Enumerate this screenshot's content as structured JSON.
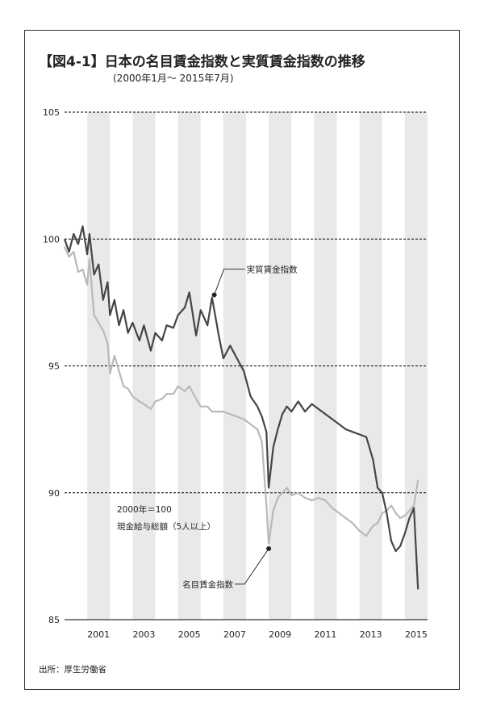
{
  "title": "【図4-1】日本の名目賃金指数と実質賃金指数の推移",
  "subtitle": "(2000年1月～ 2015年7月)",
  "source": "出所：厚生労働省",
  "notes": [
    "2000年＝100",
    "現金給与総額（5人以上）"
  ],
  "colors": {
    "nominal": "#b9b9b9",
    "real": "#454545",
    "band": "#e9e9e9",
    "grid": "#000000"
  },
  "chart_data": {
    "type": "line",
    "title": "【図4-1】日本の名目賃金指数と実質賃金指数の推移",
    "subtitle": "(2000年1月～ 2015年7月)",
    "ylim": [
      85,
      105
    ],
    "yticks": [
      85,
      90,
      95,
      100,
      105
    ],
    "xlim": [
      2000.0,
      2016.0
    ],
    "xticks": [
      2001,
      2003,
      2005,
      2007,
      2009,
      2011,
      2013,
      2015
    ],
    "grid": "dashed horizontal lines at 90, 95, 100 and 105; alternating shaded year bands",
    "series": [
      {
        "name": "実質賃金指数",
        "x": [
          2000.0,
          2000.2,
          2000.4,
          2000.6,
          2000.8,
          2001.0,
          2001.1,
          2001.3,
          2001.5,
          2001.7,
          2001.9,
          2002.0,
          2002.2,
          2002.4,
          2002.6,
          2002.8,
          2003.0,
          2003.3,
          2003.5,
          2003.8,
          2004.0,
          2004.3,
          2004.5,
          2004.8,
          2005.0,
          2005.3,
          2005.5,
          2005.8,
          2006.0,
          2006.3,
          2006.5,
          2006.8,
          2007.0,
          2007.3,
          2007.6,
          2007.9,
          2008.2,
          2008.5,
          2008.7,
          2008.9,
          2009.0,
          2009.2,
          2009.4,
          2009.6,
          2009.8,
          2010.0,
          2010.3,
          2010.6,
          2010.9,
          2011.2,
          2011.5,
          2011.8,
          2012.1,
          2012.4,
          2012.7,
          2013.0,
          2013.3,
          2013.6,
          2013.8,
          2014.0,
          2014.2,
          2014.4,
          2014.6,
          2014.8,
          2015.0,
          2015.2,
          2015.4,
          2015.58
        ],
        "values": [
          100.0,
          99.5,
          100.2,
          99.8,
          100.5,
          99.4,
          100.2,
          98.6,
          99.0,
          97.6,
          98.3,
          97.0,
          97.6,
          96.6,
          97.2,
          96.3,
          96.7,
          96.0,
          96.6,
          95.6,
          96.3,
          96.0,
          96.6,
          96.5,
          97.0,
          97.3,
          97.9,
          96.2,
          97.2,
          96.6,
          97.7,
          96.2,
          95.3,
          95.8,
          95.3,
          94.8,
          93.8,
          93.4,
          93.0,
          92.4,
          90.2,
          91.8,
          92.5,
          93.1,
          93.4,
          93.2,
          93.6,
          93.2,
          93.5,
          93.3,
          93.1,
          92.9,
          92.7,
          92.5,
          92.4,
          92.3,
          92.2,
          91.3,
          90.2,
          90.0,
          89.2,
          88.1,
          87.7,
          87.9,
          88.4,
          89.0,
          89.4,
          86.2
        ]
      },
      {
        "name": "名目賃金指数",
        "x": [
          2000.0,
          2000.2,
          2000.4,
          2000.6,
          2000.8,
          2001.0,
          2001.1,
          2001.3,
          2001.5,
          2001.7,
          2001.9,
          2002.0,
          2002.2,
          2002.4,
          2002.6,
          2002.8,
          2003.0,
          2003.3,
          2003.5,
          2003.8,
          2004.0,
          2004.3,
          2004.5,
          2004.8,
          2005.0,
          2005.3,
          2005.5,
          2005.8,
          2006.0,
          2006.3,
          2006.5,
          2006.8,
          2007.0,
          2007.3,
          2007.6,
          2007.9,
          2008.2,
          2008.5,
          2008.7,
          2008.9,
          2009.0,
          2009.2,
          2009.4,
          2009.6,
          2009.8,
          2010.0,
          2010.3,
          2010.6,
          2010.9,
          2011.2,
          2011.5,
          2011.8,
          2012.1,
          2012.4,
          2012.7,
          2013.0,
          2013.3,
          2013.6,
          2013.8,
          2014.0,
          2014.2,
          2014.4,
          2014.6,
          2014.8,
          2015.0,
          2015.2,
          2015.4,
          2015.58
        ],
        "values": [
          99.7,
          99.3,
          99.5,
          98.7,
          98.8,
          98.2,
          99.2,
          97.0,
          96.7,
          96.4,
          95.9,
          94.7,
          95.4,
          94.8,
          94.2,
          94.1,
          93.8,
          93.6,
          93.5,
          93.3,
          93.6,
          93.7,
          93.9,
          93.9,
          94.2,
          94.0,
          94.2,
          93.7,
          93.4,
          93.4,
          93.2,
          93.2,
          93.2,
          93.1,
          93.0,
          92.9,
          92.7,
          92.5,
          92.0,
          89.5,
          88.0,
          89.3,
          89.8,
          90.0,
          90.2,
          89.9,
          90.0,
          89.8,
          89.7,
          89.8,
          89.7,
          89.4,
          89.2,
          89.0,
          88.8,
          88.5,
          88.3,
          88.7,
          88.8,
          89.2,
          89.3,
          89.5,
          89.2,
          89.0,
          89.1,
          89.3,
          89.5,
          90.5
        ]
      }
    ],
    "annotations": [
      {
        "label": "実質賃金指数",
        "x": 2006.6,
        "y": 97.8
      },
      {
        "label": "名目賃金指数",
        "x": 2009.0,
        "y": 87.8
      }
    ]
  }
}
